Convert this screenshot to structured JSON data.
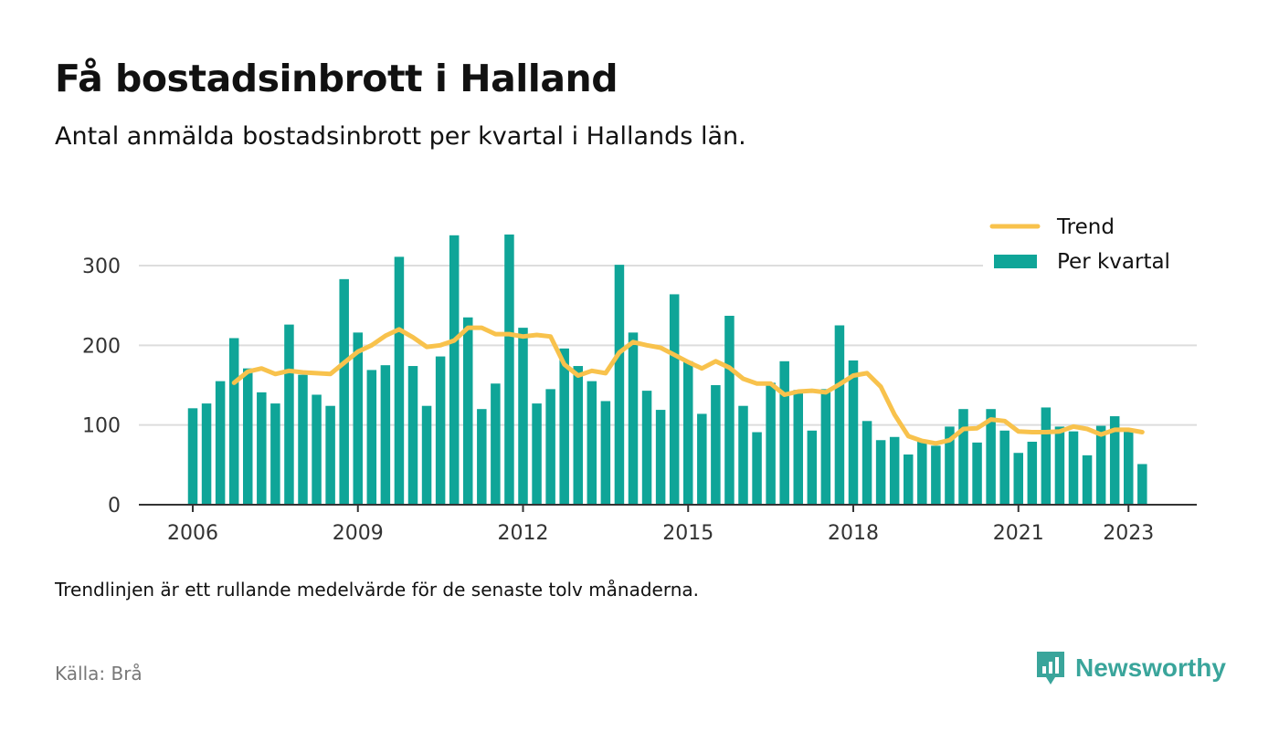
{
  "title": "Få bostadsinbrott i Halland",
  "subtitle": "Antal anmälda bostadsinbrott per kvartal i Hallands län.",
  "note": "Trendlinjen är ett rullande medelvärde för de senaste tolv månaderna.",
  "source": "Källa: Brå",
  "brand": {
    "name": "Newsworthy",
    "icon": "newsworthy-logo-icon",
    "color": "#3aa59b"
  },
  "colors": {
    "bars": "#0fa598",
    "trend": "#f8c24c",
    "grid": "#dddddd",
    "axis": "#333333"
  },
  "chart_data": {
    "type": "bar",
    "x_start_year": 2006,
    "periods_per_year": 4,
    "x_ticks": [
      "2006",
      "2009",
      "2012",
      "2015",
      "2018",
      "2021",
      "2023"
    ],
    "y_ticks": [
      0,
      100,
      200,
      300
    ],
    "ylim": [
      0,
      360
    ],
    "grid": true,
    "legend_position": "top-right",
    "series": [
      {
        "name": "Per kvartal",
        "type": "bar",
        "values": [
          121,
          127,
          155,
          209,
          171,
          141,
          127,
          226,
          163,
          138,
          124,
          283,
          216,
          169,
          175,
          311,
          174,
          124,
          186,
          338,
          235,
          120,
          152,
          339,
          222,
          127,
          145,
          196,
          174,
          155,
          130,
          301,
          216,
          143,
          119,
          264,
          180,
          114,
          150,
          237,
          124,
          91,
          153,
          180,
          144,
          93,
          145,
          225,
          181,
          105,
          81,
          85,
          63,
          80,
          74,
          98,
          120,
          78,
          120,
          93,
          65,
          79,
          122,
          98,
          92,
          62,
          99,
          111,
          95,
          51
        ]
      },
      {
        "name": "Trend",
        "type": "line",
        "start_index": 3,
        "values": [
          153,
          167,
          171,
          164,
          168,
          166,
          165,
          164,
          178,
          192,
          200,
          212,
          220,
          210,
          198,
          200,
          206,
          222,
          222,
          214,
          214,
          211,
          213,
          211,
          176,
          162,
          168,
          165,
          191,
          204,
          200,
          197,
          188,
          179,
          171,
          180,
          172,
          158,
          152,
          152,
          138,
          142,
          143,
          141,
          151,
          162,
          165,
          148,
          113,
          86,
          80,
          77,
          81,
          95,
          96,
          107,
          105,
          92,
          91,
          91,
          92,
          98,
          95,
          88,
          94,
          94,
          91
        ]
      }
    ]
  }
}
